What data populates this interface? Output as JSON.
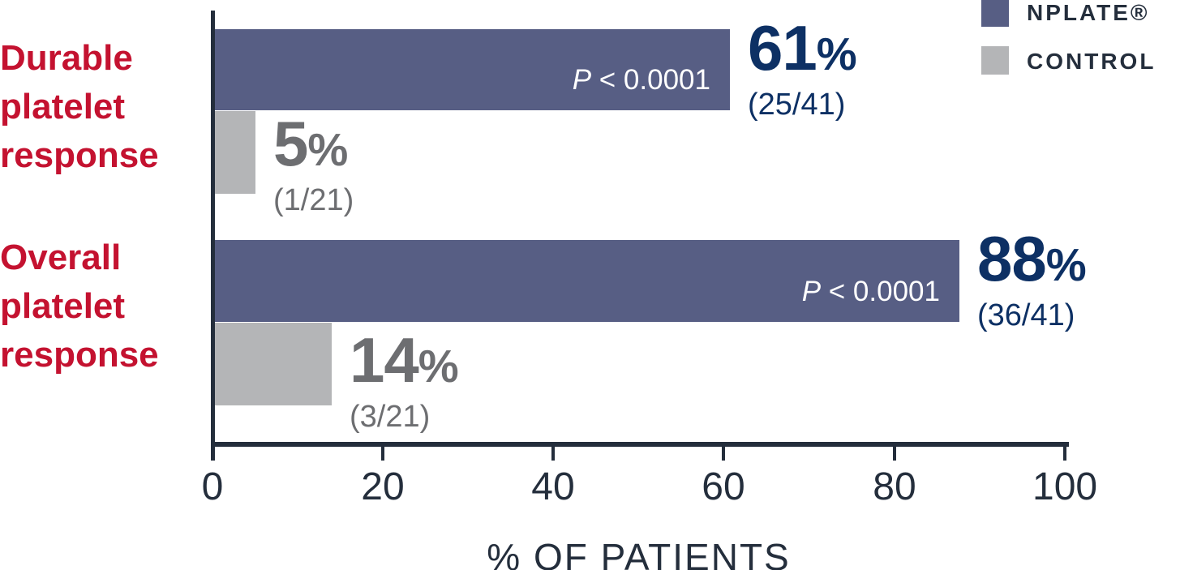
{
  "chart_data": {
    "type": "bar",
    "orientation": "horizontal",
    "title": "",
    "xlabel": "% OF PATIENTS",
    "xlim": [
      0,
      100
    ],
    "x_ticks": [
      0,
      20,
      40,
      60,
      80,
      100
    ],
    "grid": false,
    "legend_position": "top-right",
    "categories": [
      "Durable platelet response",
      "Overall platelet response"
    ],
    "series": [
      {
        "name": "NPLATE®",
        "color": "#575E84",
        "values": [
          61,
          88
        ],
        "counts": [
          "25/41",
          "36/41"
        ],
        "annotations": [
          "P < 0.0001",
          "P < 0.0001"
        ]
      },
      {
        "name": "CONTROL",
        "color": "#B4B5B7",
        "values": [
          5,
          14
        ],
        "counts": [
          "1/21",
          "3/21"
        ],
        "annotations": [
          "",
          ""
        ]
      }
    ]
  },
  "colors": {
    "nplate_bar": "#575E84",
    "control_bar": "#B4B5B7",
    "nplate_value_text": "#0D3064",
    "control_value_text": "#6D6E71",
    "category_label_text": "#C41230",
    "axis_and_legend_text": "#242E3C",
    "p_value_text": "#FFFFFF"
  },
  "percent_sign": "%",
  "groups": [
    {
      "label": "Durable\nplatelet\nresponse",
      "nplate": {
        "value": 61,
        "pct": "61",
        "fraction": "(25/41)",
        "p_italic": "P",
        "p_rest": " < 0.0001"
      },
      "control": {
        "value": 5,
        "pct": "5",
        "fraction": "(1/21)"
      }
    },
    {
      "label": "Overall\nplatelet\nresponse",
      "nplate": {
        "value": 88,
        "pct": "88",
        "fraction": "(36/41)",
        "p_italic": "P",
        "p_rest": " < 0.0001"
      },
      "control": {
        "value": 14,
        "pct": "14",
        "fraction": "(3/21)"
      }
    }
  ],
  "axis": {
    "tick_labels": [
      "0",
      "20",
      "40",
      "60",
      "80",
      "100"
    ],
    "label": "% OF PATIENTS"
  },
  "legend": {
    "nplate_label": "NPLATE®",
    "control_label": "CONTROL"
  }
}
